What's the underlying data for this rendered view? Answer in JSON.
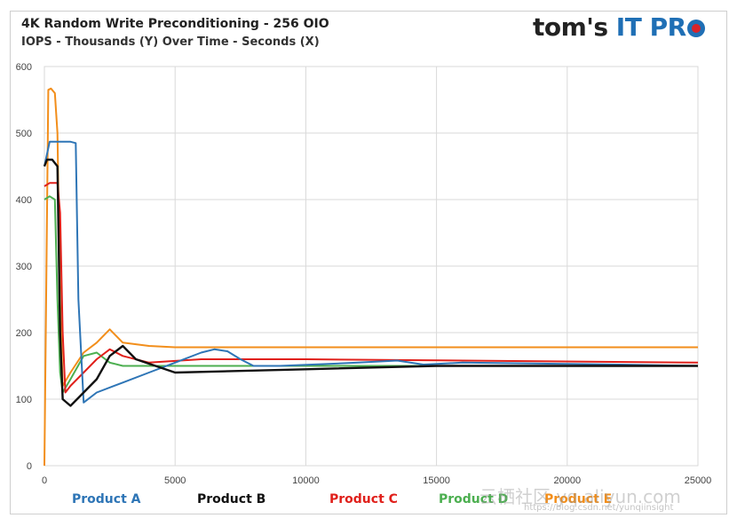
{
  "header": {
    "title": "4K Random Write Preconditioning - 256 OIO",
    "subtitle": "IOPS - Thousands (Y) Over Time - Seconds (X)",
    "brand_main": "tom's",
    "brand_accent": "IT PR"
  },
  "chart_data": {
    "type": "line",
    "title": "4K Random Write Preconditioning - 256 OIO",
    "subtitle": "IOPS - Thousands (Y) Over Time - Seconds (X)",
    "xlim": [
      0,
      25000
    ],
    "ylim": [
      0,
      600
    ],
    "xticks": [
      0,
      5000,
      10000,
      15000,
      20000,
      25000
    ],
    "yticks": [
      0,
      100,
      200,
      300,
      400,
      500,
      600
    ],
    "grid": true,
    "legend_position": "bottom",
    "series": [
      {
        "name": "Product A",
        "color": "#2e75b6",
        "x": [
          0,
          200,
          400,
          800,
          1000,
          1200,
          1300,
          1500,
          2000,
          3000,
          4000,
          5000,
          6000,
          6500,
          7000,
          7500,
          8000,
          9000,
          12000,
          13500,
          14500,
          16000,
          18000,
          20000,
          22000,
          25000
        ],
        "y": [
          450,
          487,
          487,
          487,
          487,
          485,
          250,
          95,
          110,
          125,
          140,
          155,
          170,
          175,
          172,
          160,
          150,
          150,
          155,
          158,
          152,
          155,
          154,
          153,
          152,
          150
        ]
      },
      {
        "name": "Product B",
        "color": "#111111",
        "x": [
          0,
          100,
          300,
          500,
          600,
          700,
          1000,
          1500,
          2000,
          2500,
          3000,
          3500,
          5000,
          10000,
          15000,
          20000,
          25000
        ],
        "y": [
          450,
          460,
          460,
          450,
          200,
          100,
          90,
          110,
          130,
          165,
          180,
          160,
          140,
          145,
          150,
          150,
          150
        ]
      },
      {
        "name": "Product C",
        "color": "#e0201b",
        "x": [
          0,
          200,
          500,
          600,
          700,
          800,
          1000,
          1500,
          2000,
          2500,
          3000,
          4000,
          6000,
          10000,
          25000
        ],
        "y": [
          420,
          425,
          425,
          380,
          200,
          110,
          120,
          140,
          160,
          175,
          165,
          155,
          160,
          160,
          155
        ]
      },
      {
        "name": "Product D",
        "color": "#4caf50",
        "x": [
          0,
          200,
          400,
          500,
          600,
          700,
          1000,
          1500,
          2000,
          2500,
          3000,
          4000,
          6000,
          10000,
          25000
        ],
        "y": [
          400,
          405,
          400,
          250,
          140,
          110,
          130,
          165,
          170,
          155,
          150,
          150,
          150,
          150,
          150
        ]
      },
      {
        "name": "Product E",
        "color": "#f28e1b",
        "x": [
          0,
          150,
          250,
          400,
          500,
          600,
          700,
          1000,
          1500,
          2000,
          2500,
          3000,
          4000,
          5000,
          10000,
          15000,
          20000,
          25000
        ],
        "y": [
          0,
          565,
          567,
          560,
          500,
          250,
          120,
          140,
          170,
          185,
          205,
          185,
          180,
          178,
          178,
          178,
          178,
          178
        ]
      }
    ]
  },
  "legend": {
    "items": [
      {
        "label": "Product A",
        "color": "#2e75b6"
      },
      {
        "label": "Product B",
        "color": "#111111"
      },
      {
        "label": "Product C",
        "color": "#e0201b"
      },
      {
        "label": "Product D",
        "color": "#4caf50"
      },
      {
        "label": "Product E",
        "color": "#f28e1b"
      }
    ]
  },
  "watermark": {
    "main": "云栖社区 yq.aliyun.com",
    "sub": "https://blog.csdn.net/yunqiinsight"
  }
}
